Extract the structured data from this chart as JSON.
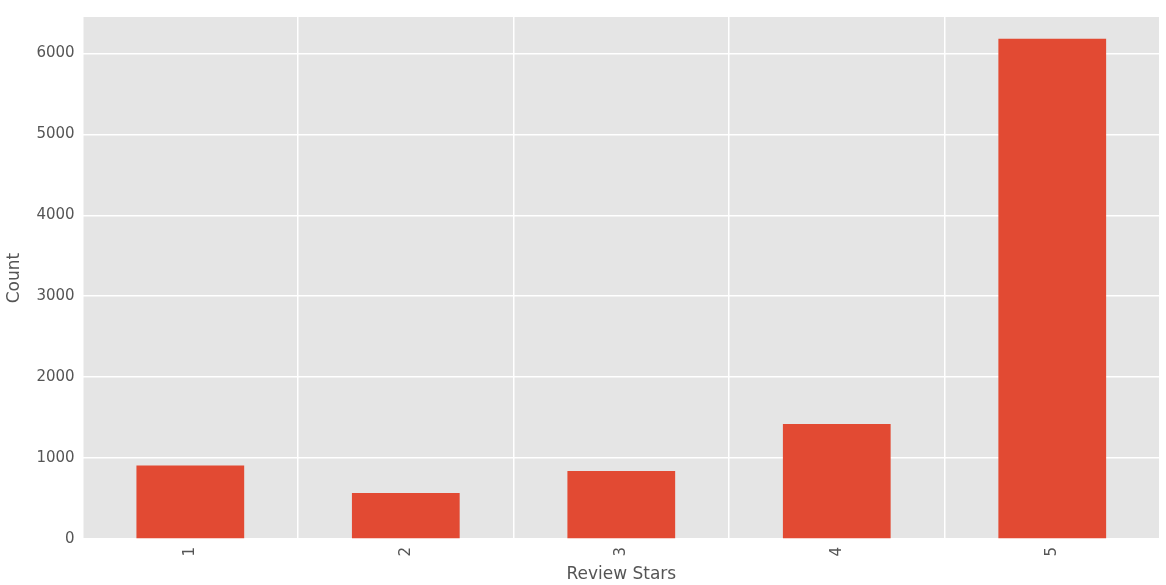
{
  "chart_data": {
    "type": "bar",
    "xlabel": "Review Stars",
    "ylabel": "Count",
    "categories": [
      "1",
      "2",
      "3",
      "4",
      "5"
    ],
    "values": [
      910,
      570,
      840,
      1420,
      6180
    ],
    "color": "#e24a33",
    "ylim": [
      0,
      6450
    ],
    "yticks": [
      0,
      1000,
      2000,
      3000,
      4000,
      5000,
      6000
    ],
    "grid": true
  }
}
